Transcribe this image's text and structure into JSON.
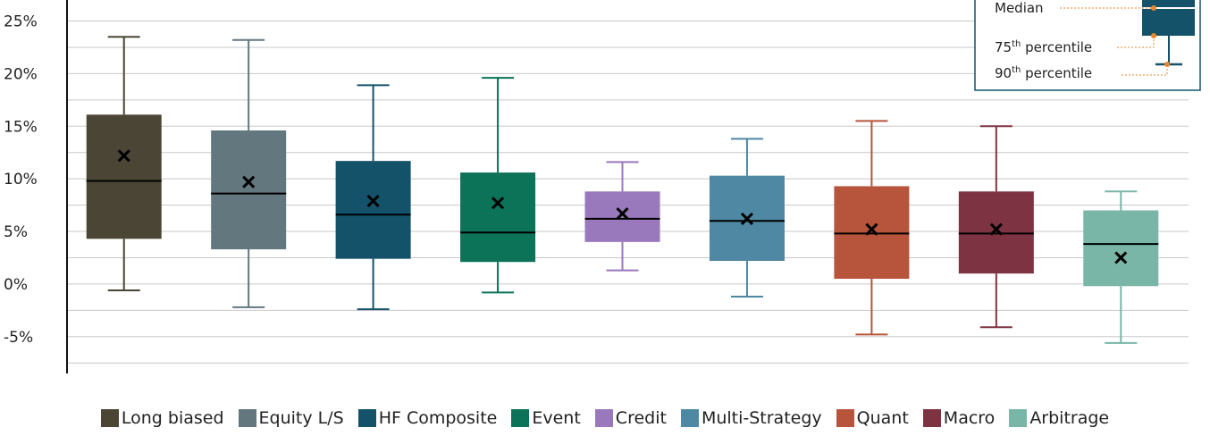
{
  "chart_data": {
    "type": "box",
    "ylim": [
      -8.5,
      27
    ],
    "yticks": [
      25,
      20,
      15,
      10,
      5,
      0,
      -5
    ],
    "ytick_labels": [
      "25%",
      "20%",
      "15%",
      "10%",
      "5%",
      "0%",
      "-5%"
    ],
    "grid": true,
    "legend_position": "bottom",
    "categories": [
      "Long biased",
      "Equity L/S",
      "HF Composite",
      "Event",
      "Credit",
      "Multi-Strategy",
      "Quant",
      "Macro",
      "Arbitrage"
    ],
    "colors": [
      "#4a4535",
      "#63777f",
      "#14526a",
      "#0c7258",
      "#9a78bc",
      "#4e88a2",
      "#b7543c",
      "#7e3342",
      "#7ab6a8"
    ],
    "series": [
      {
        "name": "Long biased",
        "p10": -0.6,
        "p25": 4.3,
        "median": 9.8,
        "p75": 16.1,
        "p90": 23.5,
        "mean": 12.2
      },
      {
        "name": "Equity L/S",
        "p10": -2.2,
        "p25": 3.3,
        "median": 8.6,
        "p75": 14.6,
        "p90": 23.2,
        "mean": 9.7
      },
      {
        "name": "HF Composite",
        "p10": -2.4,
        "p25": 2.4,
        "median": 6.6,
        "p75": 11.7,
        "p90": 18.9,
        "mean": 7.9
      },
      {
        "name": "Event",
        "p10": -0.8,
        "p25": 2.1,
        "median": 4.9,
        "p75": 10.6,
        "p90": 19.6,
        "mean": 7.7
      },
      {
        "name": "Credit",
        "p10": 1.3,
        "p25": 4.0,
        "median": 6.2,
        "p75": 8.8,
        "p90": 11.6,
        "mean": 6.7
      },
      {
        "name": "Multi-Strategy",
        "p10": -1.2,
        "p25": 2.2,
        "median": 6.0,
        "p75": 10.3,
        "p90": 13.8,
        "mean": 6.2
      },
      {
        "name": "Quant",
        "p10": -4.8,
        "p25": 0.5,
        "median": 4.8,
        "p75": 9.3,
        "p90": 15.5,
        "mean": 5.2
      },
      {
        "name": "Macro",
        "p10": -4.1,
        "p25": 1.0,
        "median": 4.8,
        "p75": 8.8,
        "p90": 15.0,
        "mean": 5.2
      },
      {
        "name": "Arbitrage",
        "p10": -5.6,
        "p25": -0.2,
        "median": 3.8,
        "p75": 7.0,
        "p90": 8.8,
        "mean": 2.5
      }
    ],
    "key": {
      "median_label": "Median",
      "p75_label": "75",
      "p75_suffix": "th",
      "p75_word": "percentile",
      "p90_label": "90",
      "p90_suffix": "th",
      "p90_word": "percentile",
      "box_color": "#14526a",
      "pointer_color": "#e8862a"
    }
  }
}
